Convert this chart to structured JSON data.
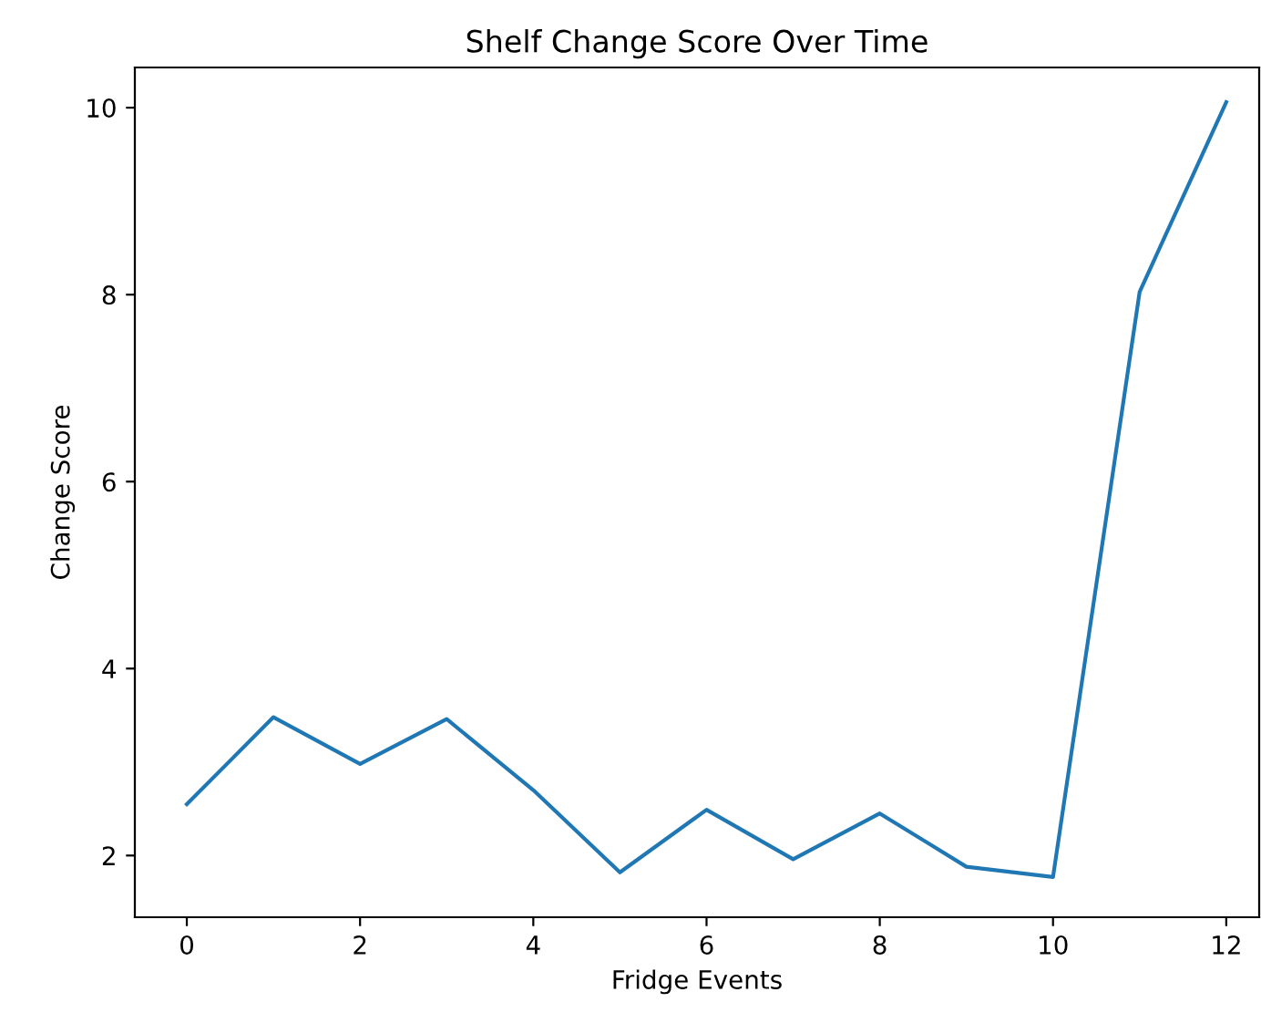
{
  "chart_data": {
    "type": "line",
    "title": "Shelf Change Score Over Time",
    "xlabel": "Fridge Events",
    "ylabel": "Change Score",
    "x": [
      0,
      1,
      2,
      3,
      4,
      5,
      6,
      7,
      8,
      9,
      10,
      11,
      12
    ],
    "series": [
      {
        "color": "#1f77b4",
        "values": [
          2.55,
          3.48,
          2.98,
          3.46,
          2.7,
          1.82,
          2.49,
          1.96,
          2.45,
          1.88,
          1.77,
          8.03,
          10.06
        ]
      }
    ],
    "xlim": [
      -0.6,
      12.38
    ],
    "ylim": [
      1.34,
      10.43
    ],
    "xticks": [
      0,
      2,
      4,
      6,
      8,
      10,
      12
    ],
    "yticks": [
      2,
      4,
      6,
      8,
      10
    ],
    "grid": false,
    "legend": false,
    "marker": "none",
    "line_style": "solid"
  }
}
